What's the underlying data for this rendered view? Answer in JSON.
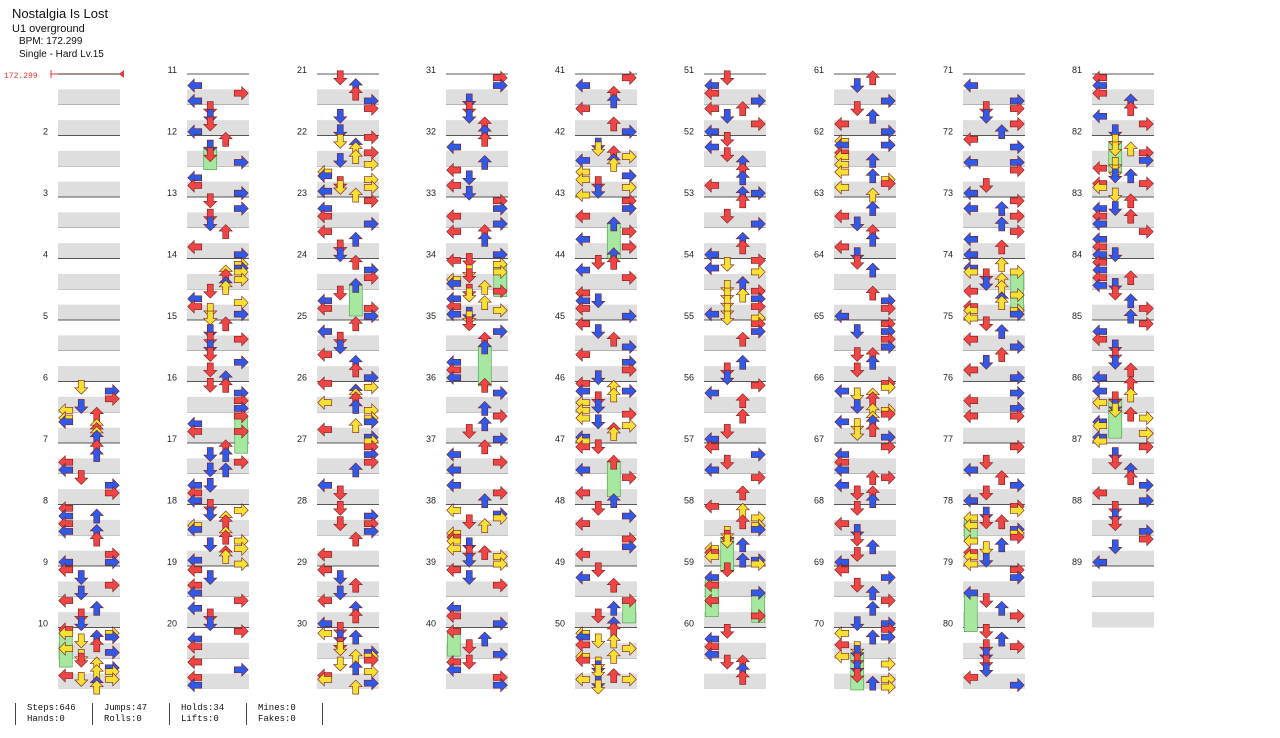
{
  "song": {
    "title": "Nostalgia Is Lost",
    "artist": "U1 overground",
    "bpm_line": "BPM: 172.299",
    "difficulty_line": "Single - Hard  Lv.15"
  },
  "bpm_marker": {
    "value": "172.299",
    "color": "#e53935"
  },
  "colors": {
    "left_arrow": "#f04545",
    "down_arrow": "#2f59e8",
    "up_arrow": "#f04545",
    "right_arrow": "#f04545",
    "quarter_note": "#f04545",
    "eighth_note": "#2f59e8",
    "sixteenth_note": "#f5e034",
    "hold": "#a6e8a0",
    "stripe": "#dedede"
  },
  "icons": [
    "left-arrow-icon",
    "down-arrow-icon",
    "up-arrow-icon",
    "right-arrow-icon",
    "hold-note-icon"
  ],
  "measures": {
    "count": 89,
    "per_column": 10,
    "columns": 9,
    "labels": [
      "2",
      "3",
      "4",
      "5",
      "6",
      "7",
      "8",
      "9",
      "10",
      "11",
      "12",
      "13",
      "14",
      "15",
      "16",
      "17",
      "18",
      "19",
      "20",
      "21",
      "22",
      "23",
      "24",
      "25",
      "26",
      "27",
      "28",
      "29",
      "30",
      "31",
      "32",
      "33",
      "34",
      "35",
      "36",
      "37",
      "38",
      "39",
      "40",
      "41",
      "42",
      "43",
      "44",
      "45",
      "46",
      "47",
      "48",
      "49",
      "50",
      "51",
      "52",
      "53",
      "54",
      "55",
      "56",
      "57",
      "58",
      "59",
      "60",
      "61",
      "62",
      "63",
      "64",
      "65",
      "66",
      "67",
      "68",
      "69",
      "70",
      "71",
      "72",
      "73",
      "74",
      "75",
      "76",
      "77",
      "78",
      "79",
      "80",
      "81",
      "82",
      "83",
      "84",
      "85",
      "86",
      "87",
      "88",
      "89"
    ]
  },
  "stats": [
    {
      "line1": "Steps:646",
      "line2": "Hands:0"
    },
    {
      "line1": "Jumps:47",
      "line2": "Rolls:0"
    },
    {
      "line1": "Holds:34",
      "line2": "Lifts:0"
    },
    {
      "line1": "Mines:0",
      "line2": "Fakes:0"
    }
  ]
}
